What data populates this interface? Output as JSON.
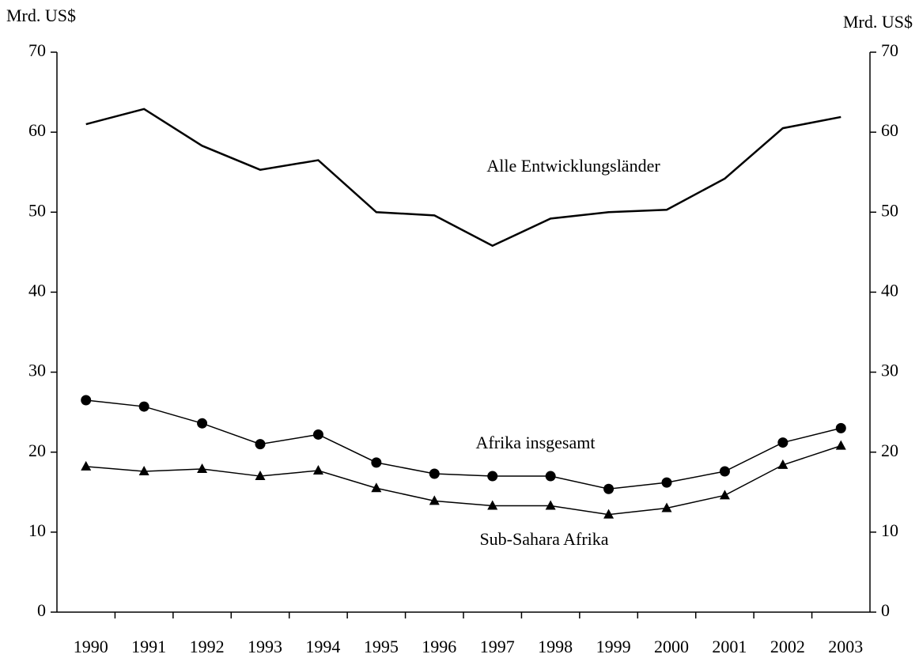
{
  "chart_data": {
    "type": "line",
    "y_label": "Mrd. US$",
    "y2_label": "Mrd. US$",
    "categories": [
      "1990",
      "1991",
      "1992",
      "1993",
      "1994",
      "1995",
      "1996",
      "1997",
      "1998",
      "1999",
      "2000",
      "2001",
      "2002",
      "2003"
    ],
    "series": [
      {
        "name": "Alle Entwicklungsländer",
        "color": "#000000",
        "marker": "none",
        "values": [
          61.0,
          62.9,
          58.3,
          55.3,
          56.5,
          50.0,
          49.6,
          45.8,
          49.2,
          50.0,
          50.3,
          54.2,
          60.5,
          61.9
        ]
      },
      {
        "name": "Afrika insgesamt",
        "color": "#000000",
        "marker": "circle",
        "values": [
          26.5,
          25.7,
          23.6,
          21.0,
          22.2,
          18.7,
          17.3,
          17.0,
          17.0,
          15.4,
          16.2,
          17.6,
          21.2,
          23.0
        ]
      },
      {
        "name": "Sub-Sahara Afrika",
        "color": "#000000",
        "marker": "triangle",
        "values": [
          18.2,
          17.6,
          17.9,
          17.0,
          17.7,
          15.5,
          13.9,
          13.3,
          13.3,
          12.2,
          13.0,
          14.6,
          18.4,
          20.8
        ]
      }
    ],
    "ylim": [
      0,
      70
    ],
    "yticks": [
      0,
      10,
      20,
      30,
      40,
      50,
      60,
      70
    ],
    "y2lim": [
      0,
      70
    ],
    "y2ticks": [
      0,
      10,
      20,
      30,
      40,
      50,
      60,
      70
    ],
    "grid": false
  }
}
